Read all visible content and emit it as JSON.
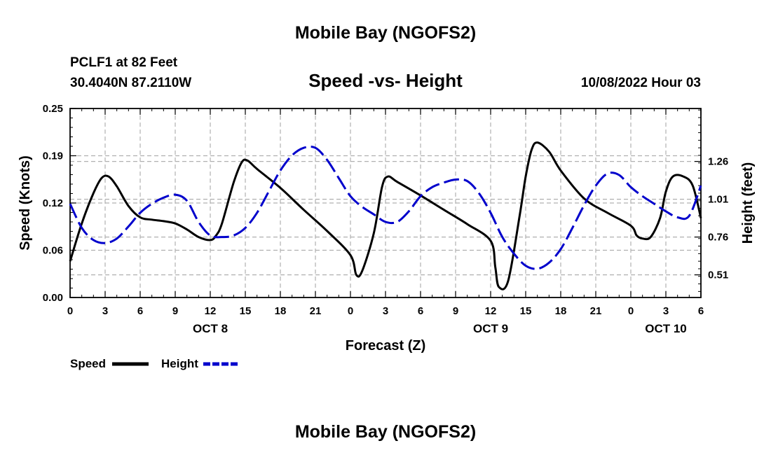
{
  "header": {
    "title": "Mobile Bay (NGOFS2)",
    "station": "PCLF1 at 82 Feet",
    "coords": "30.4040N  87.2110W",
    "chart_title": "Speed -vs- Height",
    "datetime": "10/08/2022 Hour 03"
  },
  "footer": {
    "title": "Mobile Bay (NGOFS2)"
  },
  "chart_data": {
    "type": "line",
    "title": "Speed -vs- Height",
    "xlabel": "Forecast (Z)",
    "ylabel": "Speed (Knots)",
    "y2label": "Height (feet)",
    "x_range_hours": [
      0,
      54
    ],
    "x_ticks": [
      "0",
      "3",
      "6",
      "9",
      "12",
      "15",
      "18",
      "21",
      "0",
      "3",
      "6",
      "9",
      "12",
      "15",
      "18",
      "21",
      "0",
      "3",
      "6"
    ],
    "x_day_labels": [
      {
        "hour": 12,
        "label": "OCT 8"
      },
      {
        "hour": 36,
        "label": "OCT 9"
      },
      {
        "hour": 51,
        "label": "OCT 10"
      }
    ],
    "ylim": [
      0,
      0.25
    ],
    "y_ticks": [
      "0.00",
      "0.06",
      "0.12",
      "0.19",
      "0.25"
    ],
    "y2lim": [
      0.36,
      1.61
    ],
    "y2_ticks": [
      "0.51",
      "0.76",
      "1.01",
      "1.26"
    ],
    "grid": true,
    "legend": {
      "placement": "bottom-left",
      "entries": [
        "Speed",
        "Height"
      ]
    },
    "series": [
      {
        "name": "Speed",
        "axis": "left",
        "color": "#000000",
        "x": [
          0,
          1,
          2,
          2.7,
          3.3,
          4,
          5,
          6,
          7,
          8,
          9,
          10,
          11,
          12,
          12.5,
          13,
          14,
          14.7,
          15.2,
          16,
          18,
          20,
          22,
          24,
          24.5,
          25,
          26,
          26.7,
          27.2,
          28,
          30,
          32,
          34,
          36,
          36.4,
          36.7,
          37.5,
          38.5,
          39,
          39.5,
          40,
          41,
          42,
          44,
          46,
          48,
          48.5,
          49,
          49.7,
          50.5,
          51,
          51.6,
          52.5,
          53.3,
          54
        ],
        "values": [
          0.048,
          0.098,
          0.138,
          0.158,
          0.16,
          0.147,
          0.121,
          0.106,
          0.103,
          0.101,
          0.098,
          0.09,
          0.08,
          0.076,
          0.082,
          0.098,
          0.152,
          0.179,
          0.181,
          0.17,
          0.145,
          0.116,
          0.088,
          0.056,
          0.03,
          0.035,
          0.085,
          0.146,
          0.16,
          0.153,
          0.135,
          0.116,
          0.097,
          0.075,
          0.04,
          0.014,
          0.022,
          0.11,
          0.16,
          0.195,
          0.205,
          0.193,
          0.168,
          0.131,
          0.112,
          0.095,
          0.082,
          0.078,
          0.08,
          0.105,
          0.14,
          0.16,
          0.16,
          0.148,
          0.105
        ]
      },
      {
        "name": "Height",
        "axis": "right",
        "color": "#0000cc",
        "x": [
          0,
          1,
          2,
          3,
          4,
          5,
          6,
          7,
          8,
          9,
          10,
          11,
          12,
          13,
          14,
          15,
          16,
          17,
          18,
          19,
          20,
          21,
          22,
          23,
          24,
          25,
          26,
          27,
          28,
          29,
          30,
          31,
          32,
          33,
          34,
          35,
          36,
          37,
          38,
          39,
          40,
          41,
          42,
          43,
          44,
          45,
          46,
          47,
          48,
          49,
          50,
          51,
          52,
          53,
          54
        ],
        "values": [
          0.98,
          0.82,
          0.74,
          0.72,
          0.75,
          0.83,
          0.92,
          0.98,
          1.02,
          1.04,
          1.0,
          0.86,
          0.77,
          0.76,
          0.77,
          0.82,
          0.92,
          1.06,
          1.2,
          1.3,
          1.35,
          1.35,
          1.27,
          1.15,
          1.03,
          0.96,
          0.91,
          0.86,
          0.86,
          0.93,
          1.03,
          1.09,
          1.12,
          1.14,
          1.13,
          1.05,
          0.92,
          0.76,
          0.65,
          0.57,
          0.55,
          0.59,
          0.68,
          0.82,
          0.97,
          1.1,
          1.18,
          1.17,
          1.09,
          1.03,
          0.98,
          0.93,
          0.89,
          0.9,
          1.1
        ]
      }
    ]
  }
}
